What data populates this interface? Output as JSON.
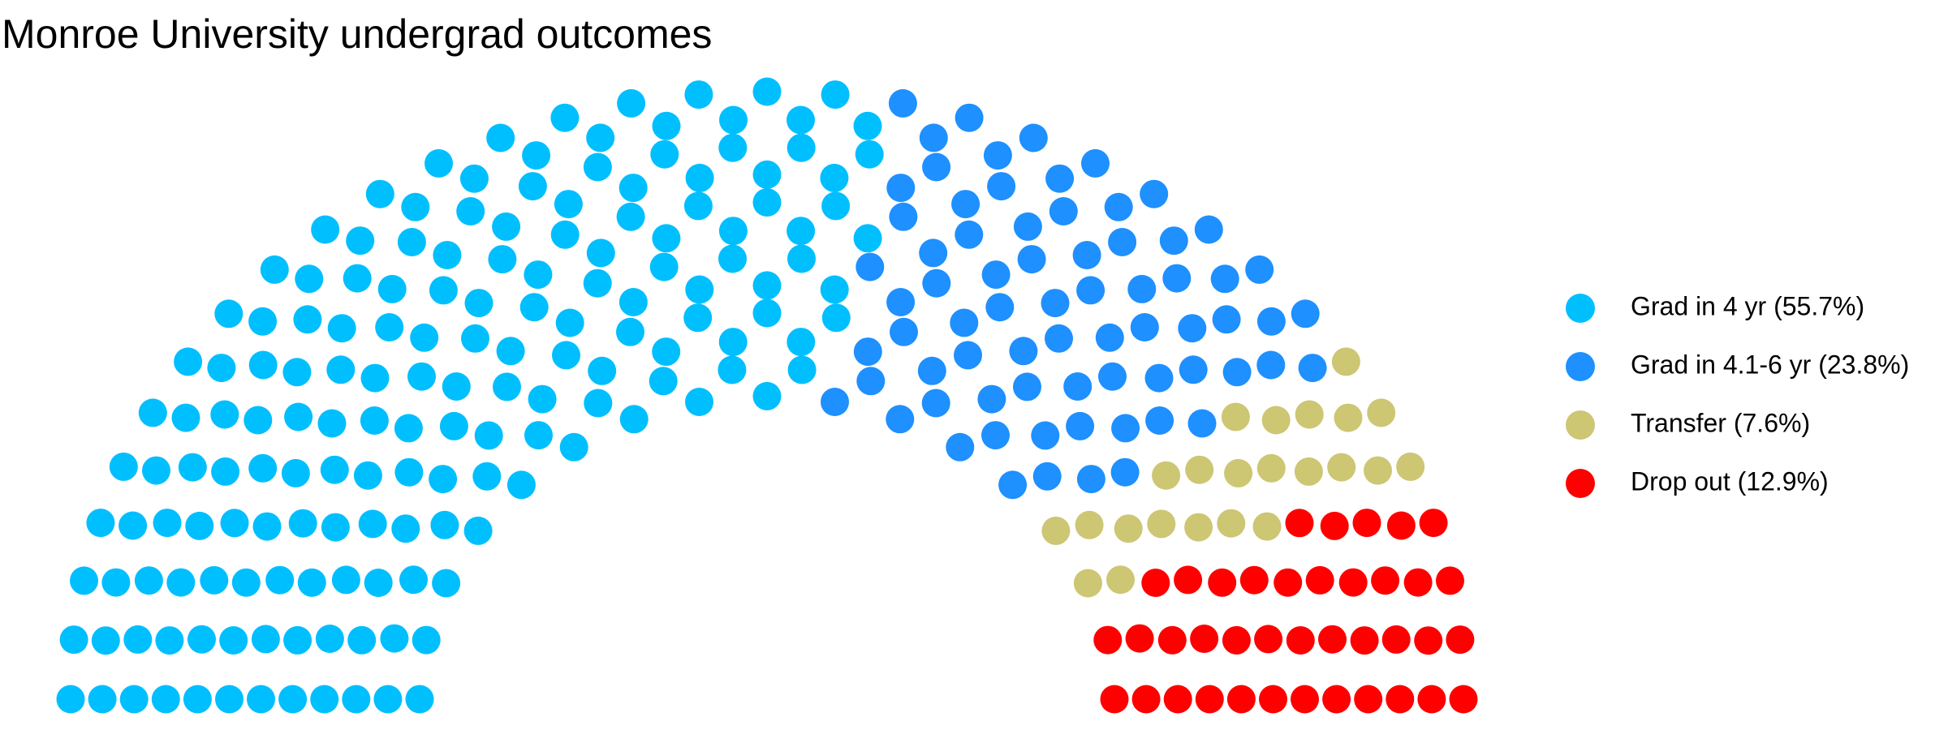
{
  "chart_data": {
    "type": "parliament",
    "title": "Monroe University undergrad outcomes",
    "series": [
      {
        "name": "Grad in 4 yr (55.7%)",
        "color": "#00BFFF",
        "value": 55.7
      },
      {
        "name": "Grad in 4.1-6 yr (23.8%)",
        "color": "#1E90FF",
        "value": 23.8
      },
      {
        "name": "Transfer (7.6%)",
        "color": "#CDC673",
        "value": 7.6
      },
      {
        "name": "Drop out (12.9%)",
        "color": "#FF0000",
        "value": 12.9
      }
    ],
    "legend": "right"
  }
}
